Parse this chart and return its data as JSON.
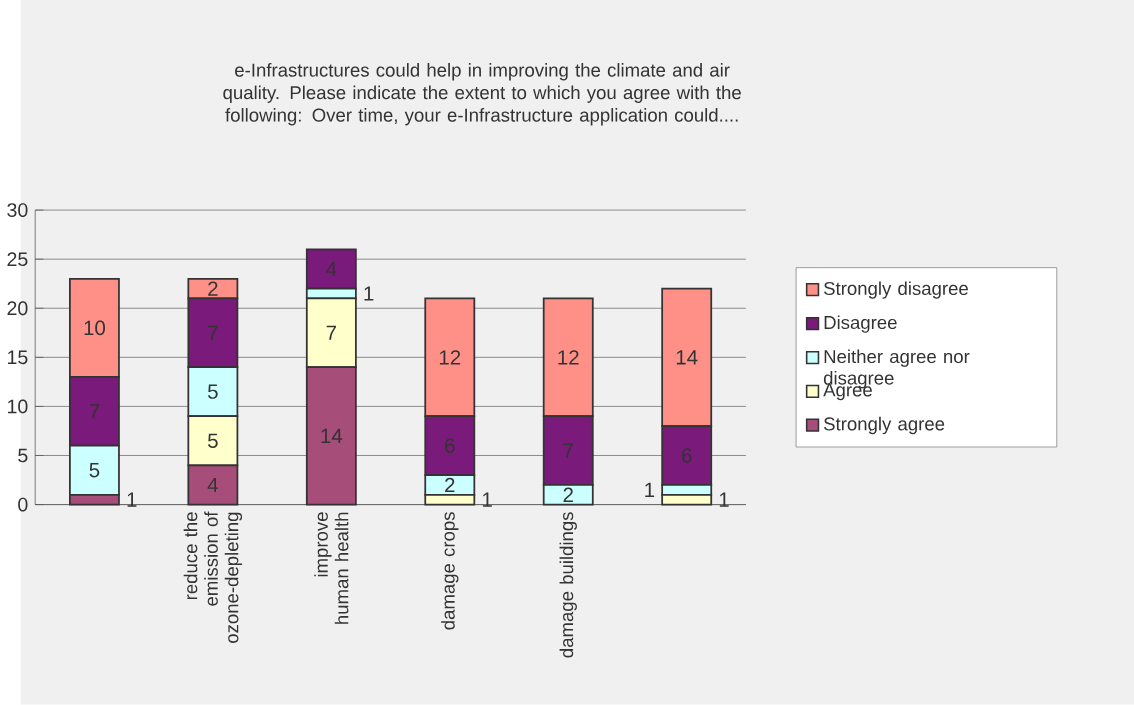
{
  "chart_data": {
    "type": "bar",
    "stacked": true,
    "title": "e-Infrastructures could help in improving the climate and air quality. Please indicate the extent to which you agree with the following:  Over time, your e-Infrastructure application could....",
    "categories": [
      null,
      "reduce the emission of ozone-depleting",
      "improve human health",
      "damage crops",
      "damage buildings",
      null
    ],
    "series": [
      {
        "name": "Strongly agree",
        "color": "#a64d79",
        "values": [
          1,
          4,
          14,
          0,
          0,
          0
        ],
        "value_labels": [
          "1",
          "4",
          "14",
          null,
          null,
          null
        ]
      },
      {
        "name": "Agree",
        "color": "#ffffcc",
        "values": [
          0,
          5,
          7,
          1,
          0,
          1
        ],
        "value_labels": [
          null,
          "5",
          "7",
          "1",
          null,
          "1"
        ]
      },
      {
        "name": "Neither agree nor disagree",
        "color": "#ccffff",
        "values": [
          5,
          5,
          1,
          2,
          2,
          1
        ],
        "value_labels": [
          "5",
          "5",
          "1",
          "2",
          "2",
          "1"
        ]
      },
      {
        "name": "Disagree",
        "color": "#7a1a7a",
        "values": [
          7,
          7,
          4,
          6,
          7,
          6
        ],
        "value_labels": [
          "7",
          "7",
          "4",
          "6",
          "7",
          "6"
        ]
      },
      {
        "name": "Strongly disagree",
        "color": "#ff9088",
        "values": [
          10,
          2,
          0,
          12,
          12,
          14
        ],
        "value_labels": [
          "10",
          "2",
          null,
          "12",
          "12",
          "14"
        ]
      }
    ],
    "ylim": [
      0,
      30
    ],
    "yticks": [
      0,
      5,
      10,
      15,
      20,
      25,
      30
    ],
    "grid": "y",
    "legend": "right"
  }
}
